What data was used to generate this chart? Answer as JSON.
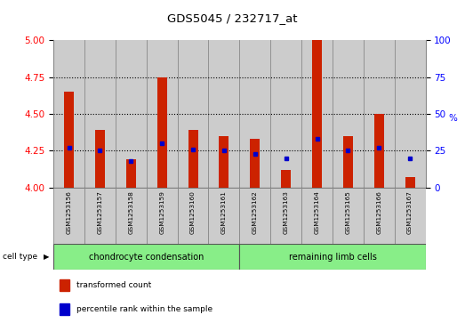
{
  "title": "GDS5045 / 232717_at",
  "samples": [
    "GSM1253156",
    "GSM1253157",
    "GSM1253158",
    "GSM1253159",
    "GSM1253160",
    "GSM1253161",
    "GSM1253162",
    "GSM1253163",
    "GSM1253164",
    "GSM1253165",
    "GSM1253166",
    "GSM1253167"
  ],
  "transformed_count": [
    4.65,
    4.39,
    4.19,
    4.75,
    4.39,
    4.35,
    4.33,
    4.12,
    5.0,
    4.35,
    4.5,
    4.07
  ],
  "percentile_rank": [
    27,
    25,
    18,
    30,
    26,
    25,
    23,
    20,
    33,
    25,
    27,
    20
  ],
  "ylim": [
    4.0,
    5.0
  ],
  "yticks_left": [
    4.0,
    4.25,
    4.5,
    4.75,
    5.0
  ],
  "yticks_right": [
    0,
    25,
    50,
    75,
    100
  ],
  "grid_lines": [
    4.25,
    4.5,
    4.75
  ],
  "bar_color": "#cc2200",
  "dot_color": "#0000cc",
  "bg_color": "#cccccc",
  "group1_color": "#88ee88",
  "group2_color": "#88ee88",
  "group1_label": "chondrocyte condensation",
  "group2_label": "remaining limb cells",
  "group1_count": 6,
  "group2_count": 6,
  "cell_type_label": "cell type",
  "legend_red": "transformed count",
  "legend_blue": "percentile rank within the sample"
}
